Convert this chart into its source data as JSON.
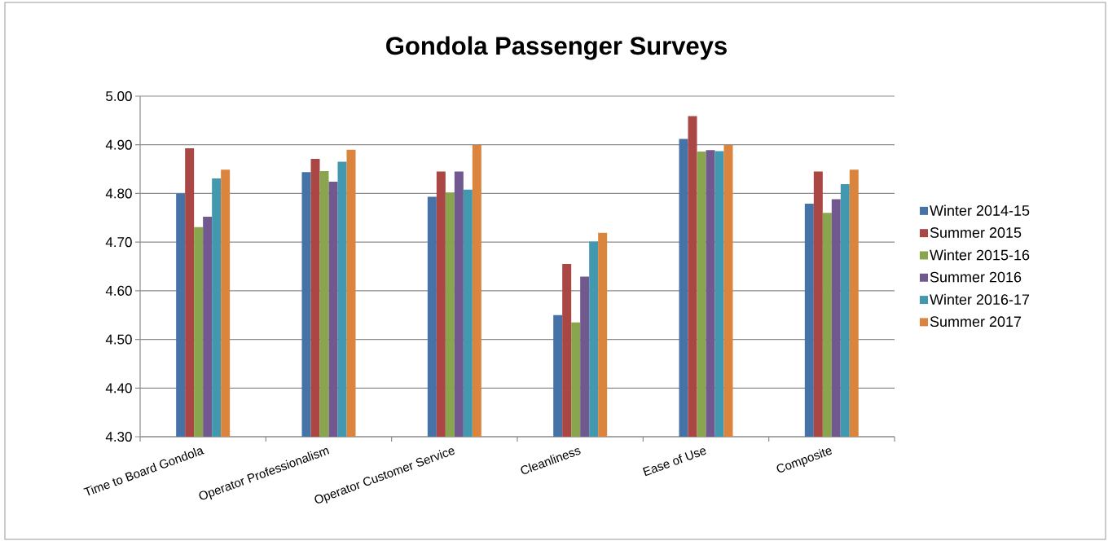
{
  "chart_data": {
    "type": "bar",
    "title": "Gondola Passenger Surveys",
    "categories": [
      "Time to Board Gondola",
      "Operator Professionalism",
      "Operator Customer Service",
      "Cleanliness",
      "Ease of Use",
      "Composite"
    ],
    "series": [
      {
        "name": "Winter 2014-15",
        "color": "#4572a7",
        "values": [
          4.8,
          4.844,
          4.793,
          4.55,
          4.912,
          4.779
        ]
      },
      {
        "name": "Summer 2015",
        "color": "#aa4643",
        "values": [
          4.893,
          4.871,
          4.845,
          4.655,
          4.959,
          4.845
        ]
      },
      {
        "name": "Winter 2015-16",
        "color": "#89a54e",
        "values": [
          4.731,
          4.846,
          4.802,
          4.535,
          4.886,
          4.76
        ]
      },
      {
        "name": "Summer 2016",
        "color": "#71588f",
        "values": [
          4.752,
          4.824,
          4.845,
          4.629,
          4.889,
          4.788
        ]
      },
      {
        "name": "Winter 2016-17",
        "color": "#4198af",
        "values": [
          4.831,
          4.865,
          4.808,
          4.701,
          4.887,
          4.819
        ]
      },
      {
        "name": "Summer 2017",
        "color": "#db843d",
        "values": [
          4.849,
          4.89,
          4.9,
          4.719,
          4.9,
          4.849
        ]
      }
    ],
    "ylim": [
      4.3,
      5.0
    ],
    "yticks": [
      {
        "value": 4.3,
        "label": "4.30"
      },
      {
        "value": 4.4,
        "label": "4.40"
      },
      {
        "value": 4.5,
        "label": "4.50"
      },
      {
        "value": 4.6,
        "label": "4.60"
      },
      {
        "value": 4.7,
        "label": "4.70"
      },
      {
        "value": 4.8,
        "label": "4.80"
      },
      {
        "value": 4.9,
        "label": "4.90"
      },
      {
        "value": 5.0,
        "label": "5.00"
      }
    ],
    "grid": "y",
    "legend": "right"
  }
}
